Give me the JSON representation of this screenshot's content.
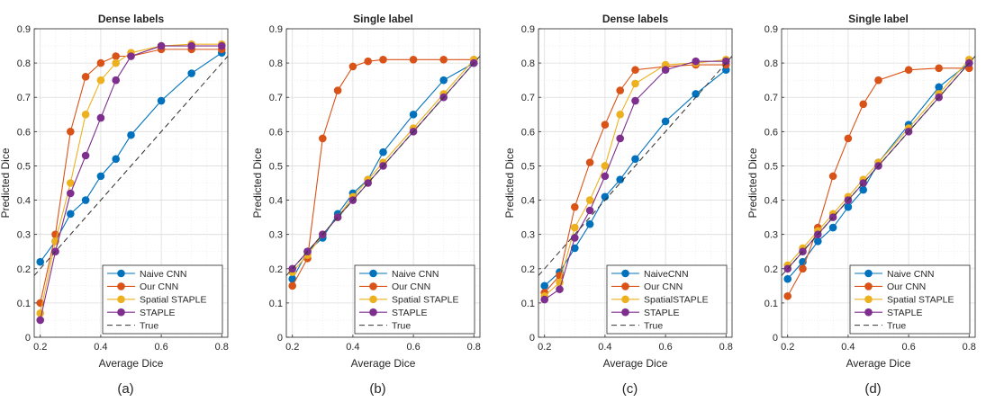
{
  "chart_data": [
    {
      "type": "line",
      "title": "Dense labels",
      "caption": "(a)",
      "xlabel": "Average Dice",
      "ylabel": "Predicted Dice",
      "xlim": [
        0.18,
        0.82
      ],
      "ylim": [
        0,
        0.9
      ],
      "xticks": [
        "0.2",
        "0.4",
        "0.6",
        "0.8"
      ],
      "yticks": [
        "0",
        "0.1",
        "0.2",
        "0.3",
        "0.4",
        "0.5",
        "0.6",
        "0.7",
        "0.8",
        "0.9"
      ],
      "grid": true,
      "legend_position": "bottom-right",
      "x": [
        0.2,
        0.25,
        0.3,
        0.35,
        0.4,
        0.45,
        0.5,
        0.6,
        0.7,
        0.8
      ],
      "series": [
        {
          "name": "Naive CNN",
          "color": "#0072BD",
          "values": [
            0.22,
            0.28,
            0.36,
            0.4,
            0.47,
            0.52,
            0.59,
            0.69,
            0.77,
            0.83
          ]
        },
        {
          "name": "Our CNN",
          "color": "#D95319",
          "values": [
            0.1,
            0.3,
            0.6,
            0.76,
            0.8,
            0.82,
            0.82,
            0.84,
            0.84,
            0.84
          ]
        },
        {
          "name": "Spatial STAPLE",
          "color": "#EDB120",
          "values": [
            0.07,
            0.28,
            0.45,
            0.65,
            0.75,
            0.8,
            0.83,
            0.85,
            0.855,
            0.855
          ]
        },
        {
          "name": "STAPLE",
          "color": "#7E2F8E",
          "values": [
            0.05,
            0.25,
            0.42,
            0.53,
            0.64,
            0.75,
            0.82,
            0.85,
            0.85,
            0.85
          ]
        },
        {
          "name": "True",
          "color": "#333333",
          "dashed": true,
          "x": [
            0.18,
            0.82
          ],
          "values": [
            0.18,
            0.82
          ]
        }
      ]
    },
    {
      "type": "line",
      "title": "Single label",
      "caption": "(b)",
      "xlabel": "Average Dice",
      "ylabel": "Predicted Dice",
      "xlim": [
        0.18,
        0.82
      ],
      "ylim": [
        0,
        0.9
      ],
      "xticks": [
        "0.2",
        "0.4",
        "0.6",
        "0.8"
      ],
      "yticks": [
        "0",
        "0.1",
        "0.2",
        "0.3",
        "0.4",
        "0.5",
        "0.6",
        "0.7",
        "0.8",
        "0.9"
      ],
      "grid": true,
      "legend_position": "bottom-right",
      "x": [
        0.2,
        0.25,
        0.3,
        0.35,
        0.4,
        0.45,
        0.5,
        0.6,
        0.7,
        0.8
      ],
      "series": [
        {
          "name": "Naive CNN",
          "color": "#0072BD",
          "values": [
            0.17,
            0.25,
            0.29,
            0.36,
            0.42,
            0.46,
            0.54,
            0.65,
            0.75,
            0.8
          ]
        },
        {
          "name": "Our CNN",
          "color": "#D95319",
          "values": [
            0.15,
            0.23,
            0.58,
            0.72,
            0.79,
            0.805,
            0.81,
            0.81,
            0.81,
            0.81
          ]
        },
        {
          "name": "Spatial STAPLE",
          "color": "#EDB120",
          "values": [
            0.19,
            0.24,
            0.3,
            0.35,
            0.41,
            0.46,
            0.51,
            0.61,
            0.71,
            0.81
          ]
        },
        {
          "name": "STAPLE",
          "color": "#7E2F8E",
          "values": [
            0.2,
            0.25,
            0.3,
            0.35,
            0.4,
            0.45,
            0.5,
            0.6,
            0.7,
            0.8
          ]
        },
        {
          "name": "True",
          "color": "#333333",
          "dashed": true,
          "x": [
            0.18,
            0.82
          ],
          "values": [
            0.18,
            0.82
          ]
        }
      ]
    },
    {
      "type": "line",
      "title": "Dense labels",
      "caption": "(c)",
      "xlabel": "Average Dice",
      "ylabel": "Predicted Dice",
      "xlim": [
        0.18,
        0.82
      ],
      "ylim": [
        0,
        0.9
      ],
      "xticks": [
        "0.2",
        "0.4",
        "0.6",
        "0.8"
      ],
      "yticks": [
        "0",
        "0.1",
        "0.2",
        "0.3",
        "0.4",
        "0.5",
        "0.6",
        "0.7",
        "0.8",
        "0.9"
      ],
      "grid": true,
      "legend_position": "bottom-right",
      "x": [
        0.2,
        0.25,
        0.3,
        0.35,
        0.4,
        0.45,
        0.5,
        0.6,
        0.7,
        0.8
      ],
      "series": [
        {
          "name": "NaiveCNN",
          "color": "#0072BD",
          "values": [
            0.15,
            0.19,
            0.26,
            0.33,
            0.41,
            0.46,
            0.52,
            0.63,
            0.71,
            0.78
          ]
        },
        {
          "name": "Our CNN",
          "color": "#D95319",
          "values": [
            0.13,
            0.18,
            0.38,
            0.51,
            0.62,
            0.72,
            0.78,
            0.79,
            0.795,
            0.795
          ]
        },
        {
          "name": "SpatialSTAPLE",
          "color": "#EDB120",
          "values": [
            0.12,
            0.16,
            0.32,
            0.4,
            0.5,
            0.65,
            0.74,
            0.795,
            0.8,
            0.81
          ]
        },
        {
          "name": "STAPLE",
          "color": "#7E2F8E",
          "values": [
            0.11,
            0.14,
            0.29,
            0.37,
            0.47,
            0.58,
            0.69,
            0.78,
            0.805,
            0.805
          ]
        },
        {
          "name": "True",
          "color": "#333333",
          "dashed": true,
          "x": [
            0.18,
            0.82
          ],
          "values": [
            0.18,
            0.82
          ]
        }
      ]
    },
    {
      "type": "line",
      "title": "Single label",
      "caption": "(d)",
      "xlabel": "Average Dice",
      "ylabel": "Predicted Dice",
      "xlim": [
        0.18,
        0.82
      ],
      "ylim": [
        0,
        0.9
      ],
      "xticks": [
        "0.2",
        "0.4",
        "0.6",
        "0.8"
      ],
      "yticks": [
        "0",
        "0.1",
        "0.2",
        "0.3",
        "0.4",
        "0.5",
        "0.6",
        "0.7",
        "0.8",
        "0.9"
      ],
      "grid": true,
      "legend_position": "bottom-right",
      "x": [
        0.2,
        0.25,
        0.3,
        0.35,
        0.4,
        0.45,
        0.5,
        0.6,
        0.7,
        0.8
      ],
      "series": [
        {
          "name": "Naive CNN",
          "color": "#0072BD",
          "values": [
            0.17,
            0.22,
            0.28,
            0.32,
            0.38,
            0.43,
            0.51,
            0.62,
            0.73,
            0.8
          ]
        },
        {
          "name": "Our CNN",
          "color": "#D95319",
          "values": [
            0.12,
            0.2,
            0.32,
            0.47,
            0.58,
            0.68,
            0.75,
            0.78,
            0.785,
            0.785
          ]
        },
        {
          "name": "Spatial STAPLE",
          "color": "#EDB120",
          "values": [
            0.21,
            0.26,
            0.31,
            0.36,
            0.41,
            0.46,
            0.51,
            0.61,
            0.71,
            0.81
          ]
        },
        {
          "name": "STAPLE",
          "color": "#7E2F8E",
          "values": [
            0.2,
            0.25,
            0.3,
            0.35,
            0.4,
            0.45,
            0.5,
            0.6,
            0.7,
            0.8
          ]
        },
        {
          "name": "True",
          "color": "#333333",
          "dashed": true,
          "x": [
            0.18,
            0.82
          ],
          "values": [
            0.18,
            0.82
          ]
        }
      ]
    }
  ]
}
